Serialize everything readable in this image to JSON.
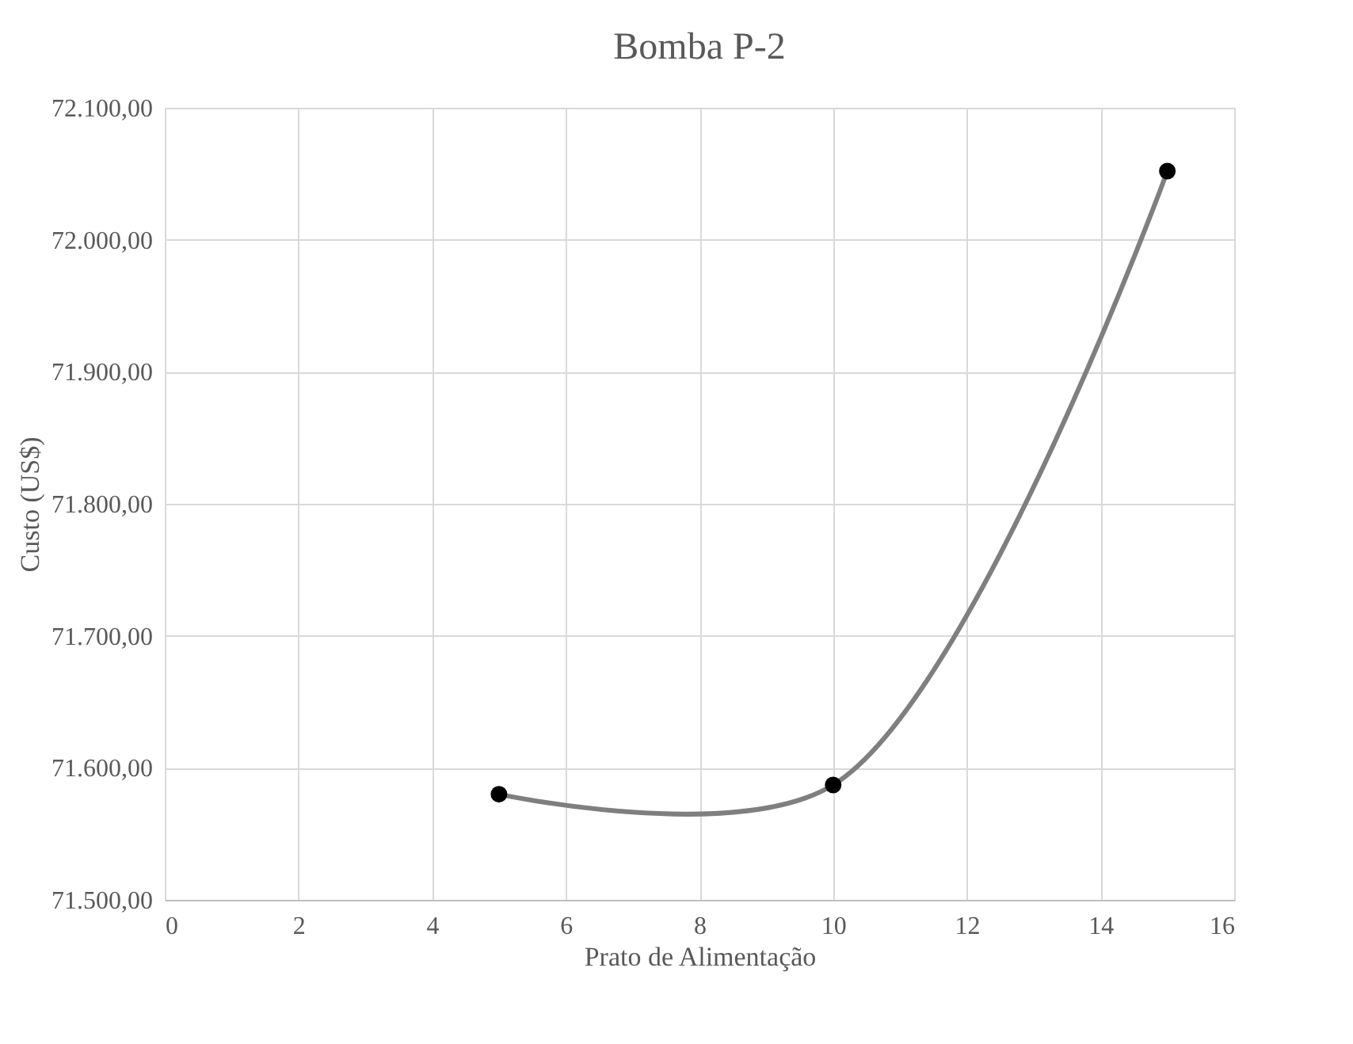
{
  "chart_data": {
    "type": "line",
    "title": "Bomba P-2",
    "xlabel": "Prato de Alimentação",
    "ylabel": "Custo (US$)",
    "x": [
      5,
      10,
      15
    ],
    "series": [
      {
        "color": "#7f7f7f",
        "values": [
          71580,
          71587,
          72052
        ]
      }
    ],
    "marker": "circle",
    "line_style": "solid",
    "grid": true,
    "xlim": [
      0,
      16
    ],
    "xticks": [
      0,
      2,
      4,
      6,
      8,
      10,
      12,
      14,
      16
    ],
    "ylim": [
      71500,
      72100
    ],
    "yticks": [
      {
        "value": 71500,
        "label": "71.500,00"
      },
      {
        "value": 71600,
        "label": "71.600,00"
      },
      {
        "value": 71700,
        "label": "71.700,00"
      },
      {
        "value": 71800,
        "label": "71.800,00"
      },
      {
        "value": 71900,
        "label": "71.900,00"
      },
      {
        "value": 72000,
        "label": "72.000,00"
      },
      {
        "value": 72100,
        "label": "72.100,00"
      }
    ]
  }
}
